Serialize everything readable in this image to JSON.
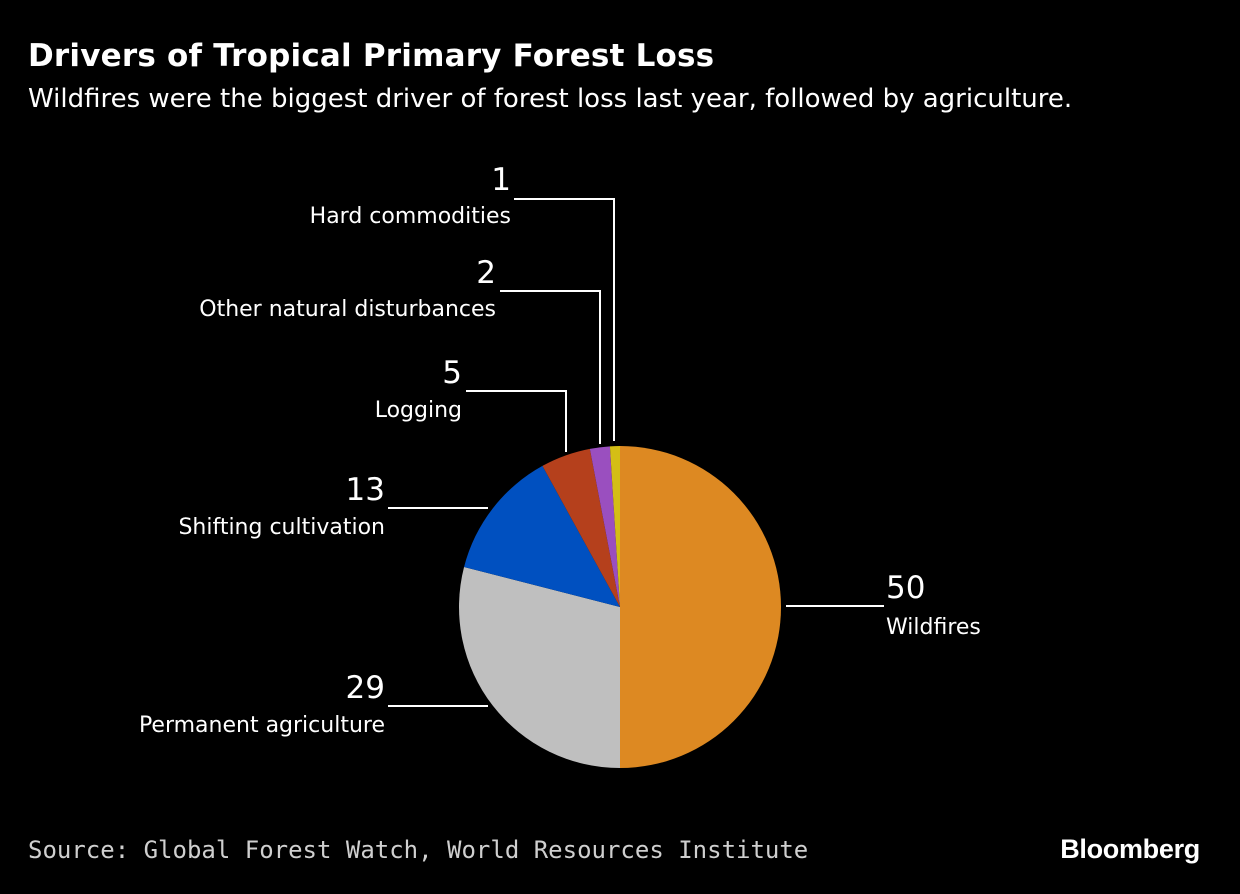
{
  "chart_data": {
    "type": "pie",
    "title": "Drivers of Tropical Primary Forest Loss",
    "subtitle": "Wildfires were the biggest driver of forest loss last year, followed by agriculture.",
    "unit": "percent",
    "slices": [
      {
        "label": "Wildfires",
        "value": 50,
        "value_label": "50",
        "color": "#dd8922"
      },
      {
        "label": "Permanent agriculture",
        "value": 29,
        "value_label": "29",
        "color": "#bfbfbf"
      },
      {
        "label": "Shifting cultivation",
        "value": 13,
        "value_label": "13",
        "color": "#0050c0"
      },
      {
        "label": "Logging",
        "value": 5,
        "value_label": "5",
        "color": "#b5401c"
      },
      {
        "label": "Other natural disturbances",
        "value": 2,
        "value_label": "2",
        "color": "#9a4fbf"
      },
      {
        "label": "Hard commodities",
        "value": 1,
        "value_label": "1",
        "color": "#d4be15"
      }
    ],
    "source": "Source: Global Forest Watch, World Resources Institute",
    "brand": "Bloomberg"
  }
}
